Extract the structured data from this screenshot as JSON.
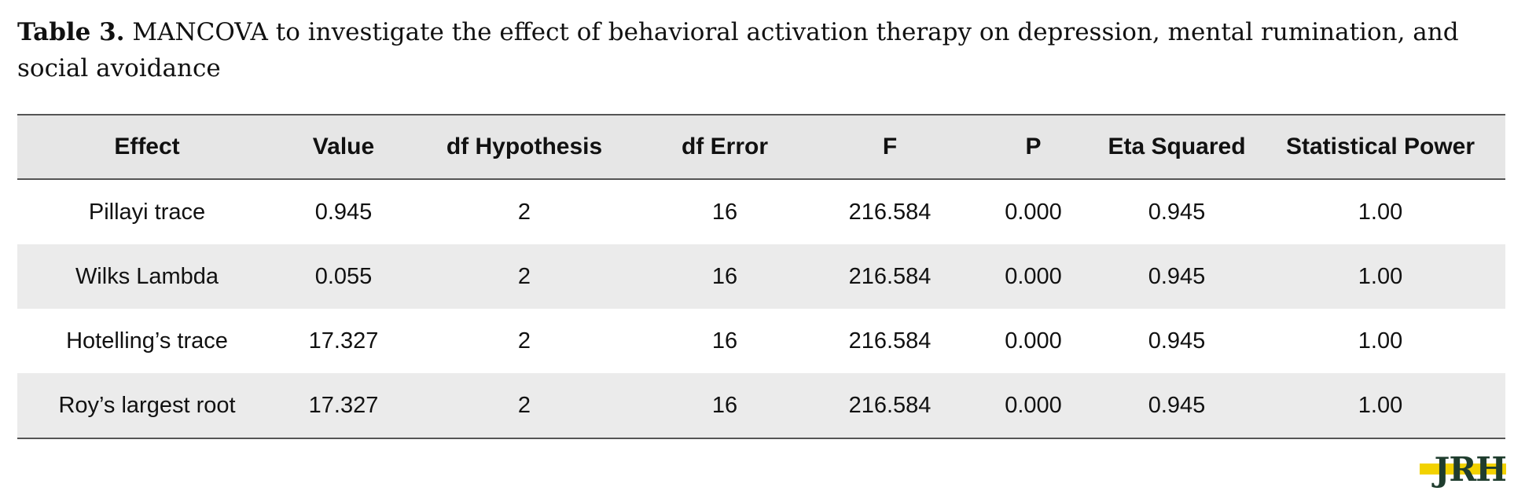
{
  "caption": {
    "label": "Table 3.",
    "text": " MANCOVA to investigate the effect of behavioral activation therapy on depression, mental rumination, and social avoidance"
  },
  "table": {
    "headers": [
      "Effect",
      "Value",
      "df Hypothesis",
      "df Error",
      "F",
      "P",
      "Eta Squared",
      "Statistical Power"
    ],
    "rows": [
      [
        "Pillayi trace",
        "0.945",
        "2",
        "16",
        "216.584",
        "0.000",
        "0.945",
        "1.00"
      ],
      [
        "Wilks Lambda",
        "0.055",
        "2",
        "16",
        "216.584",
        "0.000",
        "0.945",
        "1.00"
      ],
      [
        "Hotelling’s trace",
        "17.327",
        "2",
        "16",
        "216.584",
        "0.000",
        "0.945",
        "1.00"
      ],
      [
        "Roy’s largest root",
        "17.327",
        "2",
        "16",
        "216.584",
        "0.000",
        "0.945",
        "1.00"
      ]
    ]
  },
  "logo": {
    "text": "JRH",
    "colors": {
      "letters": "#1f3d2e",
      "band": "#f2d200"
    }
  }
}
